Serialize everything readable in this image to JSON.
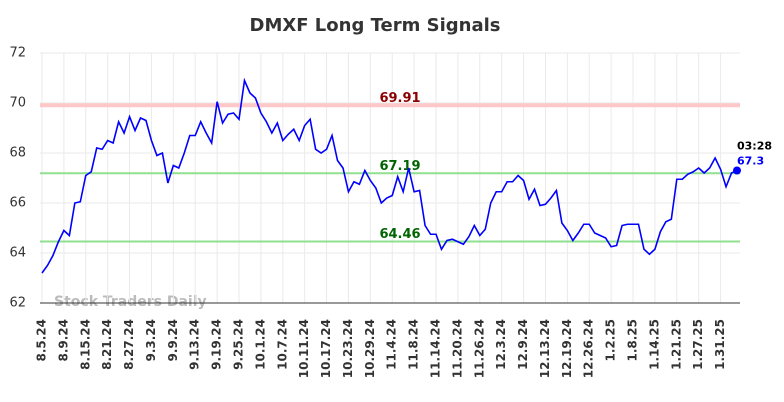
{
  "chart_data": {
    "type": "line",
    "title": "DMXF Long Term Signals",
    "watermark": "Stock Traders Daily",
    "end_annotation": "03:28",
    "categories": [
      "8.5.24",
      null,
      null,
      null,
      "8.9.24",
      null,
      null,
      null,
      "8.15.24",
      null,
      null,
      null,
      "8.21.24",
      null,
      null,
      null,
      "8.27.24",
      null,
      null,
      null,
      "9.3.24",
      null,
      null,
      null,
      "9.9.24",
      null,
      null,
      null,
      "9.13.24",
      null,
      null,
      null,
      "9.19.24",
      null,
      null,
      null,
      "9.25.24",
      null,
      null,
      null,
      "10.1.24",
      null,
      null,
      null,
      "10.7.24",
      null,
      null,
      null,
      "10.11.24",
      null,
      null,
      null,
      "10.17.24",
      null,
      null,
      null,
      "10.23.24",
      null,
      null,
      null,
      "10.29.24",
      null,
      null,
      null,
      "11.4.24",
      null,
      null,
      null,
      "11.8.24",
      null,
      null,
      null,
      "11.14.24",
      null,
      null,
      null,
      "11.20.24",
      null,
      null,
      null,
      "11.26.24",
      null,
      null,
      null,
      "12.3.24",
      null,
      null,
      null,
      "12.9.24",
      null,
      null,
      null,
      "12.13.24",
      null,
      null,
      null,
      "12.19.24",
      null,
      null,
      null,
      "12.26.24",
      null,
      null,
      null,
      "1.2.25",
      null,
      null,
      null,
      "1.8.25",
      null,
      null,
      null,
      "1.14.25",
      null,
      null,
      null,
      "1.21.25",
      null,
      null,
      null,
      "1.27.25",
      null,
      null,
      null,
      "1.31.25",
      null,
      null,
      null
    ],
    "series": [
      {
        "name": "DMXF",
        "color": "#0000ff",
        "values": [
          63.2,
          63.5,
          63.9,
          64.45,
          64.9,
          64.7,
          66.0,
          66.05,
          67.1,
          67.25,
          68.2,
          68.15,
          68.5,
          68.4,
          69.25,
          68.8,
          69.45,
          68.9,
          69.4,
          69.3,
          68.5,
          67.9,
          68.0,
          66.8,
          67.5,
          67.4,
          68.0,
          68.7,
          68.7,
          69.25,
          68.8,
          68.4,
          70.05,
          69.2,
          69.55,
          69.6,
          69.35,
          70.9,
          70.4,
          70.2,
          69.6,
          69.25,
          68.8,
          69.2,
          68.5,
          68.75,
          68.95,
          68.5,
          69.1,
          69.35,
          68.15,
          68.0,
          68.15,
          68.7,
          67.7,
          67.4,
          66.45,
          66.85,
          66.75,
          67.3,
          66.9,
          66.6,
          66.0,
          66.2,
          66.3,
          67.05,
          66.45,
          67.4,
          66.45,
          66.5,
          65.1,
          64.75,
          64.75,
          64.15,
          64.5,
          64.55,
          64.45,
          64.35,
          64.65,
          65.1,
          64.7,
          64.95,
          66.0,
          66.45,
          66.45,
          66.85,
          66.85,
          67.1,
          66.9,
          66.15,
          66.55,
          65.9,
          65.95,
          66.2,
          66.5,
          65.2,
          64.9,
          64.5,
          64.8,
          65.15,
          65.15,
          64.8,
          64.7,
          64.6,
          64.25,
          64.3,
          65.1,
          65.15,
          65.15,
          65.15,
          64.15,
          63.95,
          64.15,
          64.85,
          65.25,
          65.35,
          66.95,
          66.95,
          67.15,
          67.25,
          67.4,
          67.2,
          67.4,
          67.8,
          67.35,
          66.65,
          67.2,
          67.3
        ]
      }
    ],
    "levels": [
      {
        "value": 69.91,
        "line_color": "#ffc8c8",
        "label_color": "#8b0000"
      },
      {
        "value": 67.19,
        "line_color": "#90e090",
        "label_color": "#006400"
      },
      {
        "value": 64.46,
        "line_color": "#90e090",
        "label_color": "#006400"
      }
    ],
    "ylim": [
      62,
      72
    ],
    "yticks": [
      62,
      64,
      66,
      68,
      70,
      72
    ],
    "grid": true
  }
}
